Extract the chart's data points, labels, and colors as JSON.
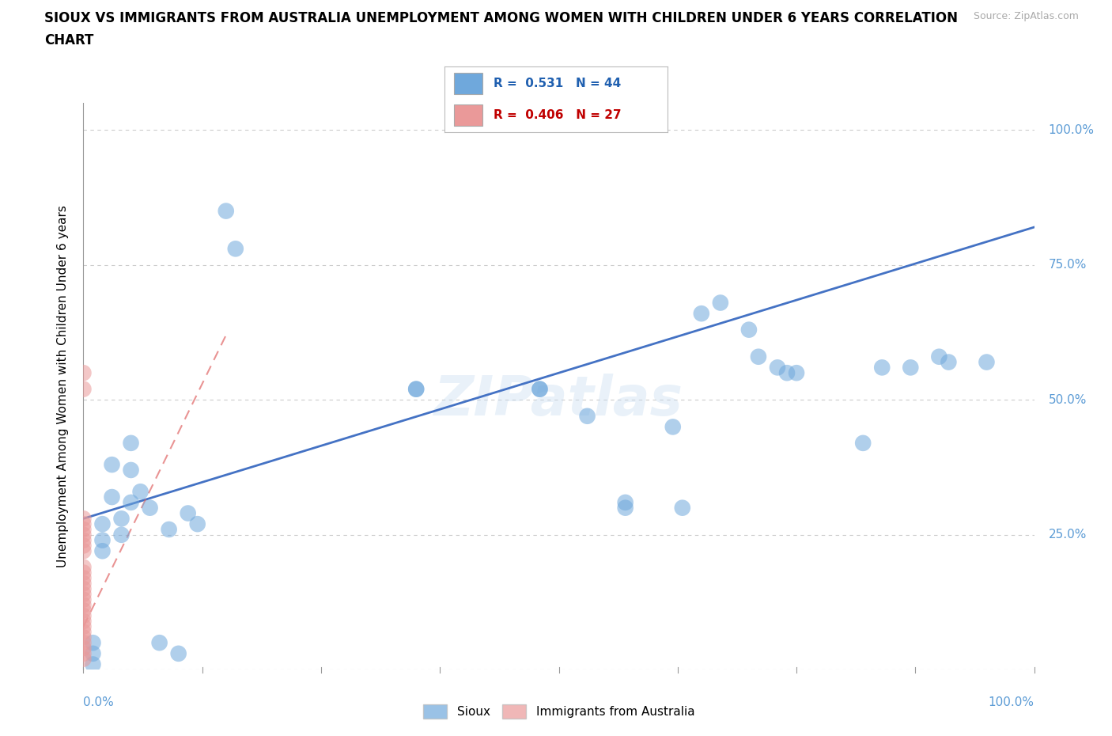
{
  "title_line1": "SIOUX VS IMMIGRANTS FROM AUSTRALIA UNEMPLOYMENT AMONG WOMEN WITH CHILDREN UNDER 6 YEARS CORRELATION",
  "title_line2": "CHART",
  "source_text": "Source: ZipAtlas.com",
  "ylabel": "Unemployment Among Women with Children Under 6 years",
  "watermark": "ZIPatlas",
  "xlim": [
    0,
    100
  ],
  "ylim": [
    0,
    105
  ],
  "ytick_values": [
    0,
    25,
    50,
    75,
    100
  ],
  "ytick_labels": [
    "0.0%",
    "25.0%",
    "50.0%",
    "75.0%",
    "100.0%"
  ],
  "sioux_color": "#6fa8dc",
  "aus_color": "#ea9999",
  "trendline_sioux_color": "#4472c4",
  "trendline_aus_color": "#e06666",
  "legend_sioux_R": "0.531",
  "legend_sioux_N": "44",
  "legend_aus_R": "0.406",
  "legend_aus_N": "27",
  "sioux_points_x": [
    1,
    1,
    1,
    2,
    2,
    2,
    3,
    3,
    4,
    4,
    5,
    5,
    5,
    6,
    7,
    8,
    9,
    10,
    11,
    12,
    15,
    16,
    35,
    35,
    48,
    48,
    53,
    57,
    57,
    62,
    63,
    65,
    67,
    70,
    71,
    73,
    74,
    75,
    82,
    84,
    87,
    90,
    91,
    95
  ],
  "sioux_points_y": [
    5,
    3,
    1,
    27,
    24,
    22,
    38,
    32,
    28,
    25,
    42,
    37,
    31,
    33,
    30,
    5,
    26,
    3,
    29,
    27,
    85,
    78,
    52,
    52,
    52,
    52,
    47,
    31,
    30,
    45,
    30,
    66,
    68,
    63,
    58,
    56,
    55,
    55,
    42,
    56,
    56,
    58,
    57,
    57
  ],
  "aus_points_x": [
    0,
    0,
    0,
    0,
    0,
    0,
    0,
    0,
    0,
    0,
    0,
    0,
    0,
    0,
    0,
    0,
    0,
    0,
    0,
    0,
    0,
    0,
    0,
    0,
    0,
    0,
    0
  ],
  "aus_points_y": [
    55,
    52,
    19,
    18,
    17,
    16,
    15,
    14,
    13,
    12,
    11,
    10,
    9,
    8,
    7,
    6,
    5,
    4,
    3,
    2,
    26,
    25,
    24,
    23,
    28,
    27,
    22
  ],
  "sioux_trend_x": [
    0,
    100
  ],
  "sioux_trend_y": [
    28,
    82
  ],
  "aus_trend_x": [
    0,
    15
  ],
  "aus_trend_y": [
    8,
    62
  ]
}
